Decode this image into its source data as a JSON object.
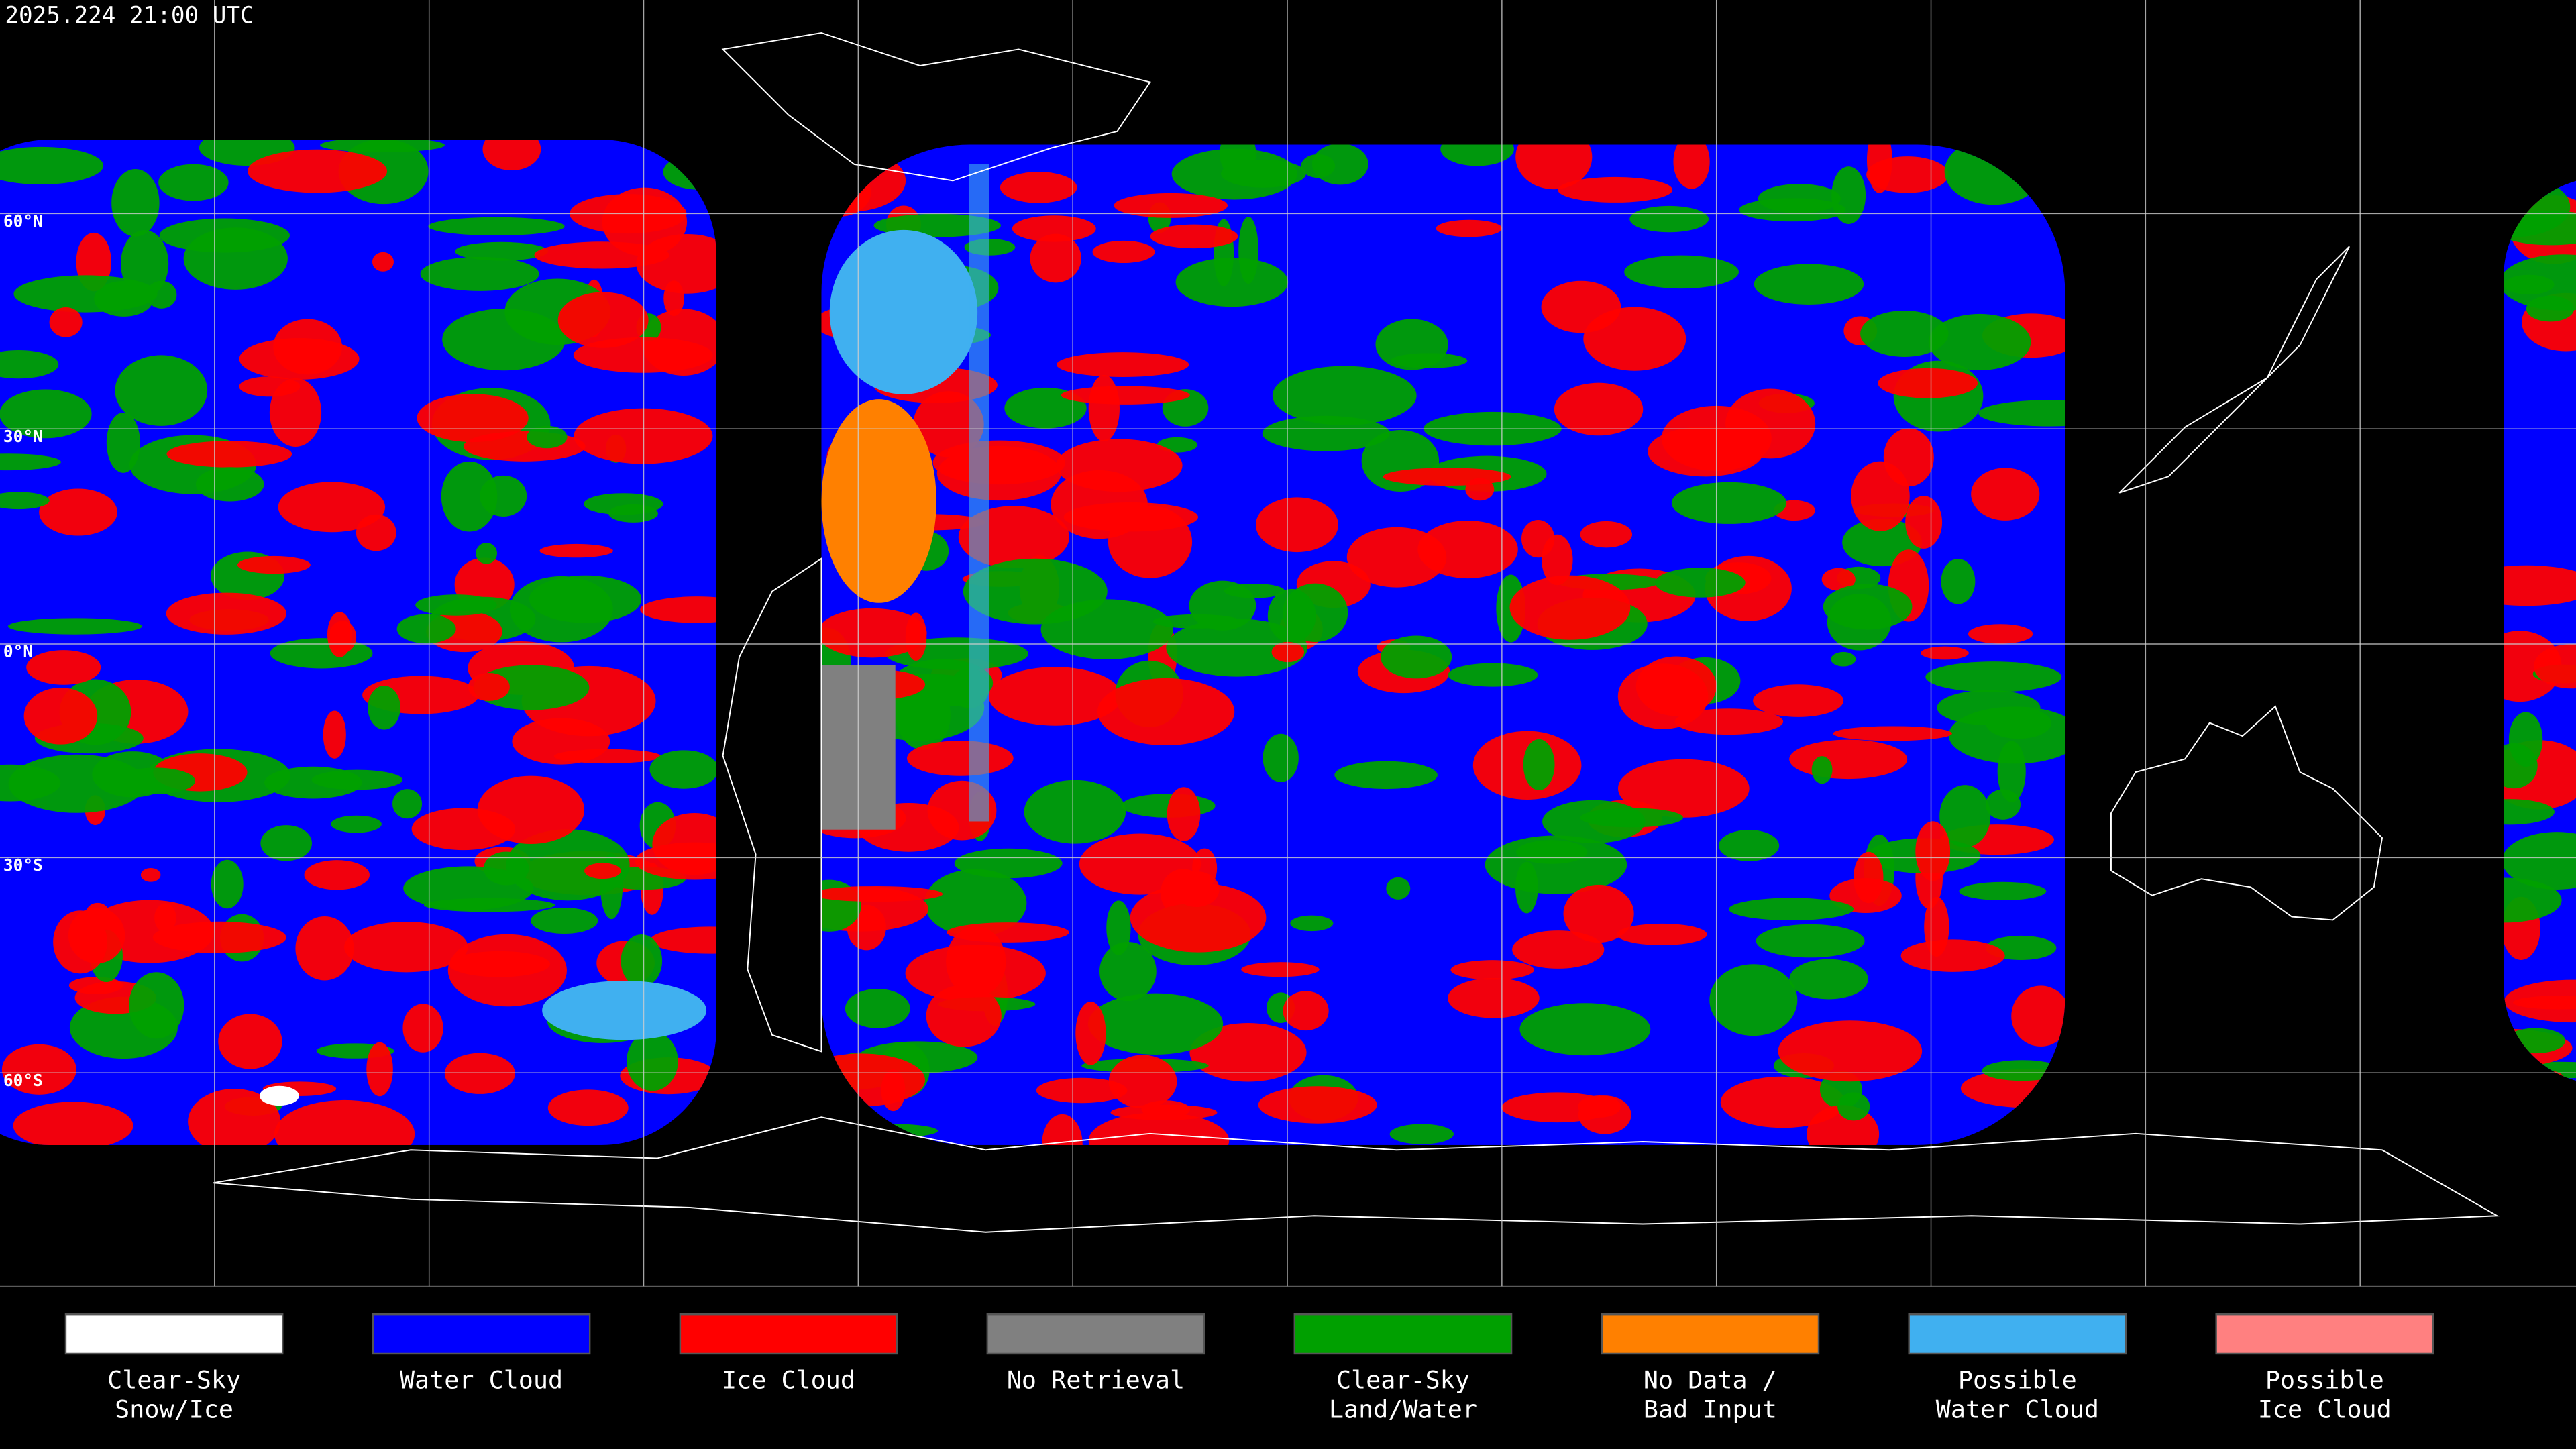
{
  "header": {
    "title": "2025.224 21:00 UTC"
  },
  "map": {
    "lat_labels": [
      "60°N",
      "30°N",
      "0°N",
      "30°S",
      "60°S"
    ]
  },
  "legend": {
    "items": [
      {
        "lines": [
          "Clear-Sky",
          "Snow/Ice"
        ],
        "color": "#ffffff"
      },
      {
        "lines": [
          "Water Cloud"
        ],
        "color": "#0000ff"
      },
      {
        "lines": [
          "Ice Cloud"
        ],
        "color": "#ff0000"
      },
      {
        "lines": [
          "No Retrieval"
        ],
        "color": "#808080"
      },
      {
        "lines": [
          "Clear-Sky",
          "Land/Water"
        ],
        "color": "#00a000"
      },
      {
        "lines": [
          "No Data /",
          "Bad Input"
        ],
        "color": "#ff8000"
      },
      {
        "lines": [
          "Possible",
          "Water Cloud"
        ],
        "color": "#40b0f0"
      },
      {
        "lines": [
          "Possible",
          "Ice Cloud"
        ],
        "color": "#ff8080"
      }
    ]
  }
}
